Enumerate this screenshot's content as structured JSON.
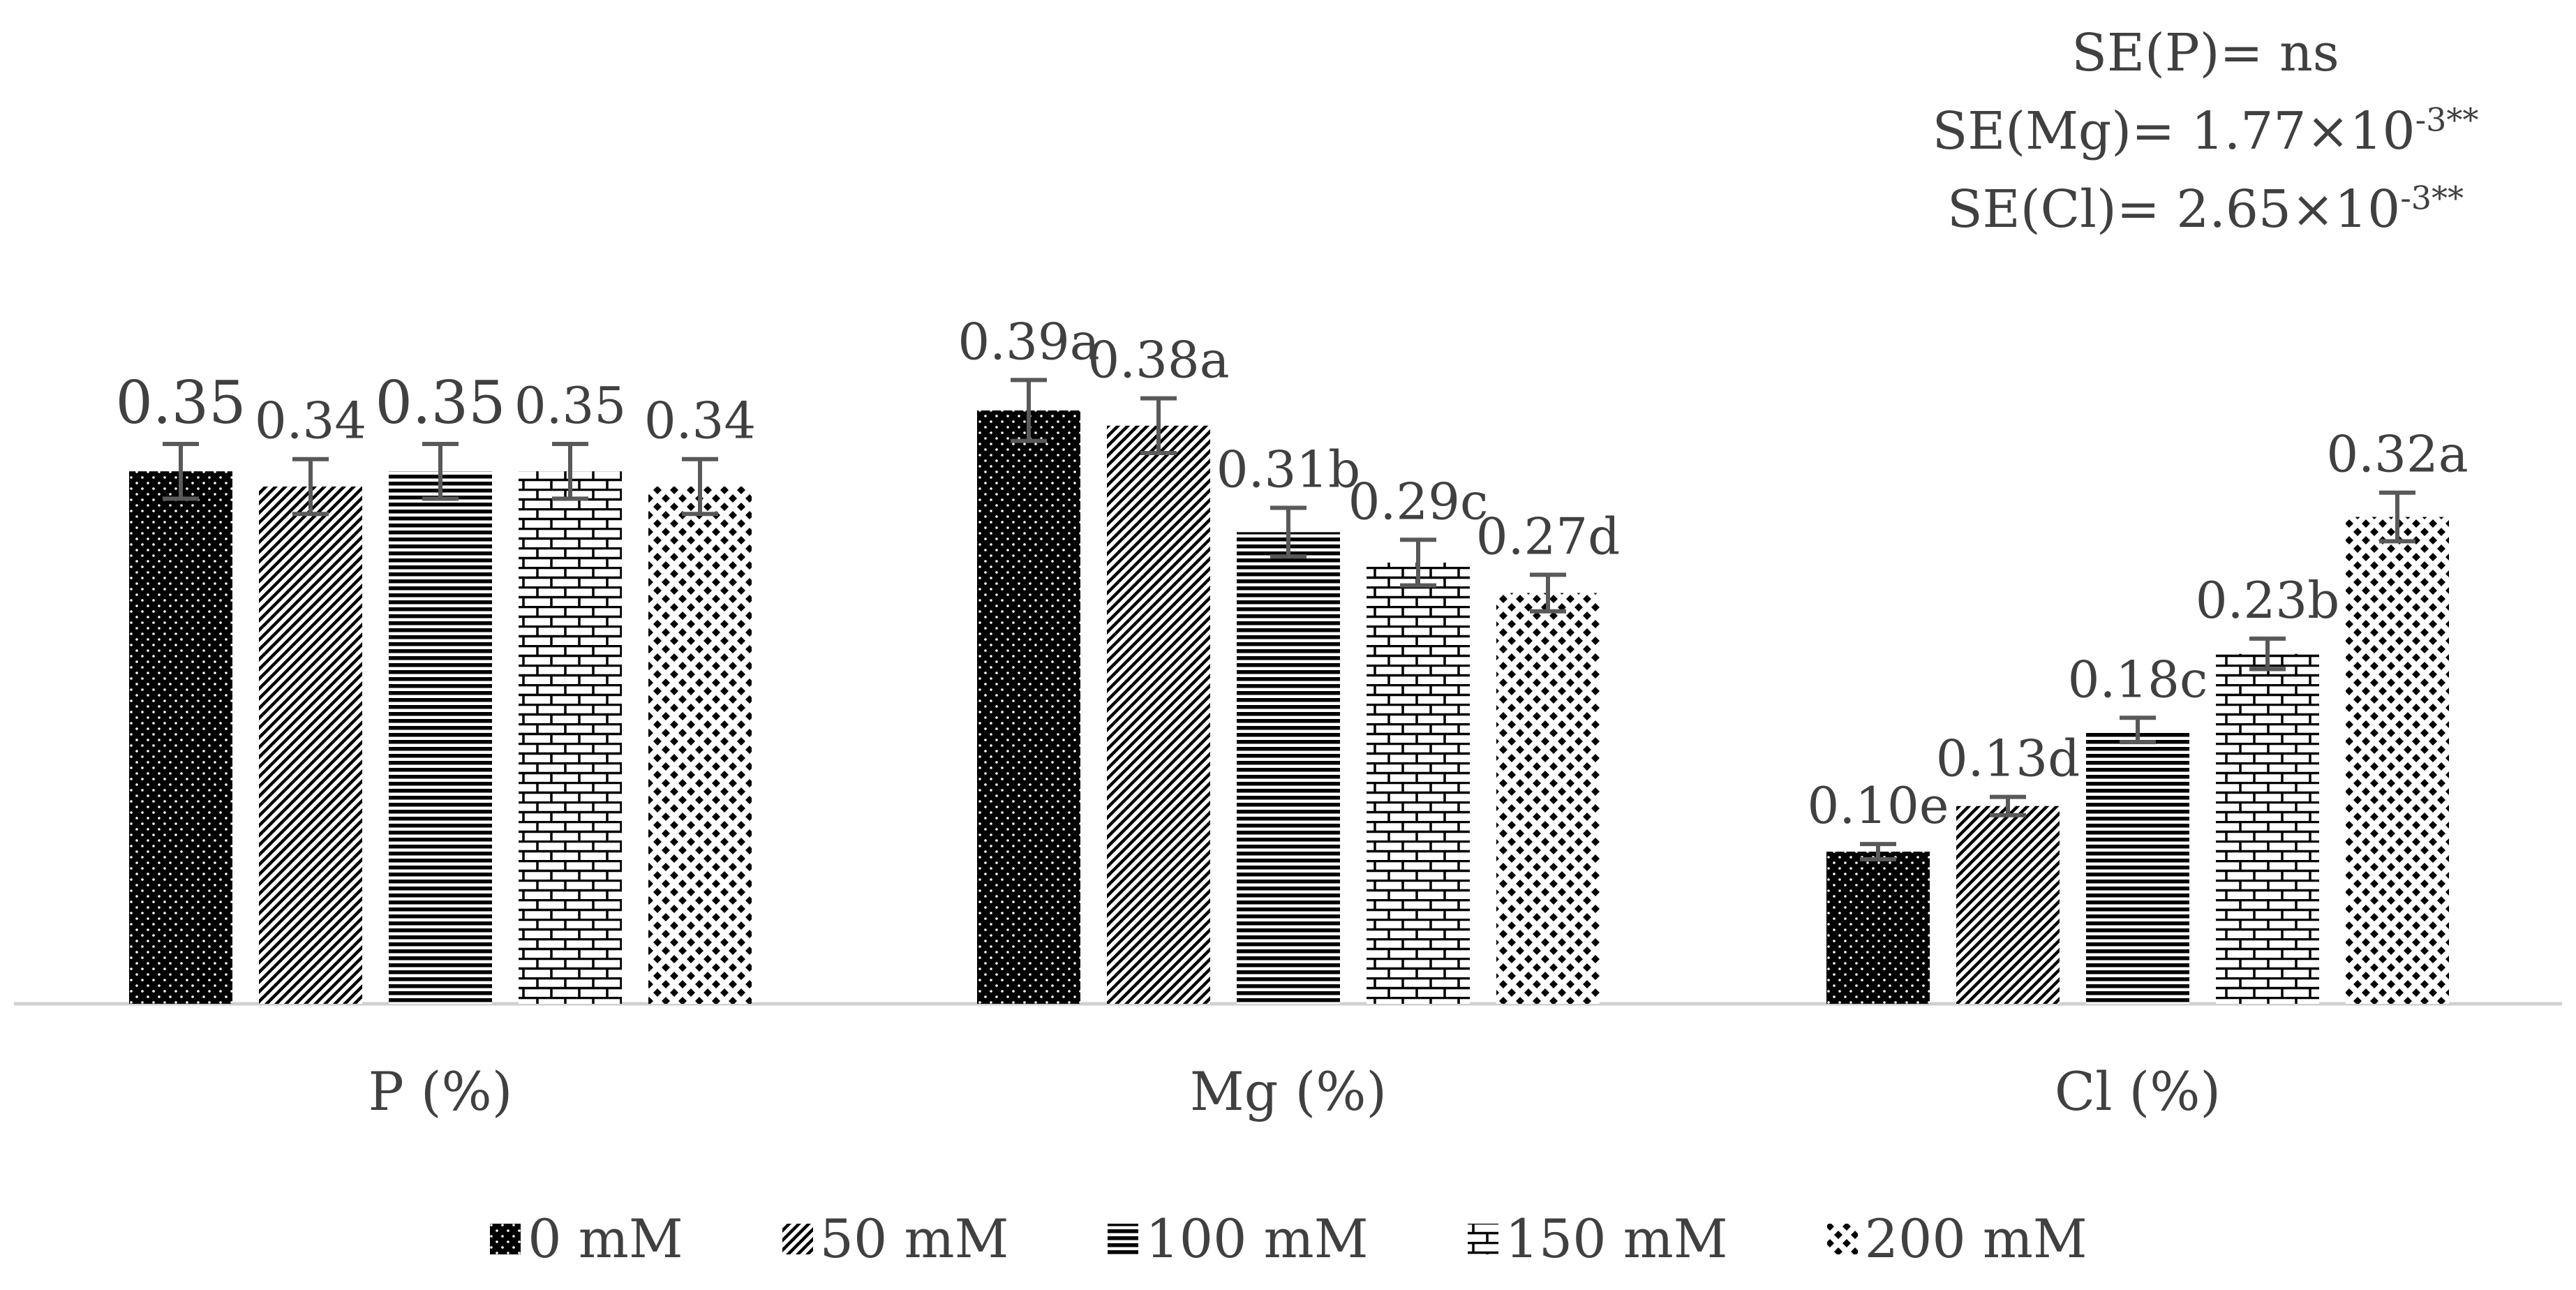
{
  "chart_data": {
    "type": "bar",
    "categories": [
      "P (%)",
      "Mg (%)",
      "Cl (%)"
    ],
    "series": [
      {
        "name": "0 mM",
        "values": [
          0.35,
          0.39,
          0.1
        ],
        "errors": [
          0.018,
          0.02,
          0.005
        ],
        "labels": [
          "0.35",
          "0.39a",
          "0.10e"
        ]
      },
      {
        "name": "50 mM",
        "values": [
          0.34,
          0.38,
          0.13
        ],
        "errors": [
          0.018,
          0.018,
          0.006
        ],
        "labels": [
          "0.34",
          "0.38a",
          "0.13d"
        ]
      },
      {
        "name": "100 mM",
        "values": [
          0.35,
          0.31,
          0.18
        ],
        "errors": [
          0.018,
          0.016,
          0.008
        ],
        "labels": [
          "0.35",
          "0.31b",
          "0.18c"
        ]
      },
      {
        "name": "150 mM",
        "values": [
          0.35,
          0.29,
          0.23
        ],
        "errors": [
          0.018,
          0.015,
          0.01
        ],
        "labels": [
          "0.35",
          "0.29c",
          "0.23b"
        ]
      },
      {
        "name": "200 mM",
        "values": [
          0.34,
          0.27,
          0.32
        ],
        "errors": [
          0.018,
          0.012,
          0.016
        ],
        "labels": [
          "0.34",
          "0.27d",
          "0.32a"
        ]
      }
    ],
    "ylim": [
      0,
      0.45
    ],
    "grid": false,
    "legend_position": "bottom",
    "title": "",
    "xlabel": "",
    "ylabel": ""
  },
  "annotations": {
    "se_p": "SE(P)= ns",
    "se_mg_prefix": "SE(Mg)=  1.77×10",
    "se_mg_exp": "-3**",
    "se_cl_prefix": "SE(Cl)=  2.65×10",
    "se_cl_exp": "-3**"
  },
  "colors": {
    "bar_fill": "#000000",
    "background": "#ffffff",
    "axis": "#d0d0d0",
    "error_bar": "#595959",
    "text": "#404040"
  }
}
